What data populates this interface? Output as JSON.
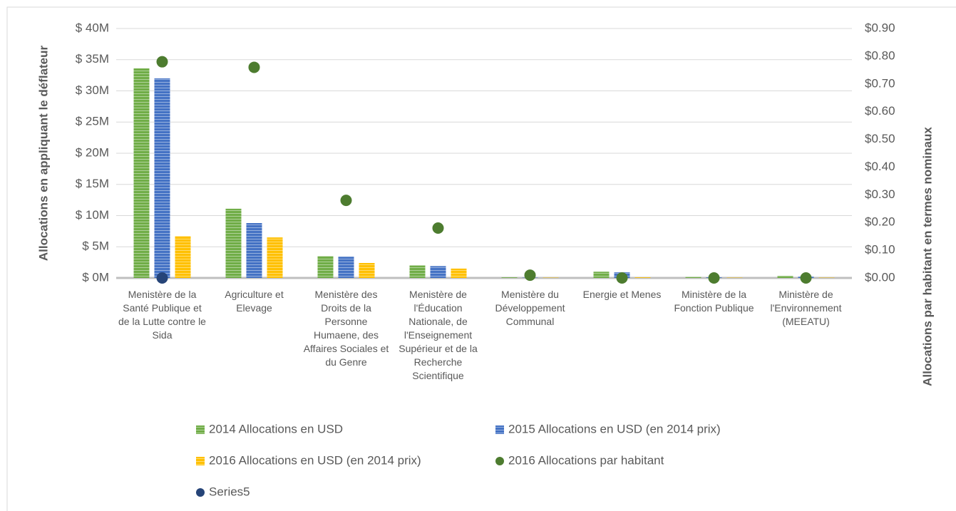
{
  "chart_data": {
    "type": "bar",
    "y_label": "Allocations en appliquant le déflateur",
    "y2_label": "Allocations par habitant en termes nominaux",
    "categories": [
      "Menistère de la Santé Publique et de la Lutte contre le Sida",
      "Agriculture et Elevage",
      "Menistère des Droits de la Personne Humaene, des Affaires Sociales et du Genre",
      "Menistère de l'Éducation Nationale, de l'Enseignement Supérieur et de la Recherche Scientifique",
      "Menistère du Développement Communal",
      "Energie et Menes",
      "Ministère de la Fonction Publique",
      "Ministère de l'Environnement (MEEATU)"
    ],
    "series": [
      {
        "name": "2014 Allocations en USD",
        "type": "bar",
        "color": "#70ad47",
        "values": [
          33600000,
          11100000,
          3500000,
          2000000,
          100000,
          1000000,
          150000,
          350000
        ]
      },
      {
        "name": "2015 Allocations en USD (en 2014 prix)",
        "type": "bar",
        "color": "#4472c4",
        "values": [
          32000000,
          8800000,
          3400000,
          1900000,
          50000,
          900000,
          100000,
          200000
        ]
      },
      {
        "name": "2016 Allocations en USD (en 2014 prix)",
        "type": "bar",
        "color": "#ffc000",
        "values": [
          6700000,
          6500000,
          2400000,
          1500000,
          50000,
          100000,
          50000,
          50000
        ]
      },
      {
        "name": "2016 Allocations par habitant",
        "type": "scatter",
        "axis": "y2",
        "color": "#4d7c2f",
        "values": [
          0.78,
          0.76,
          0.28,
          0.18,
          0.01,
          0,
          0,
          0
        ]
      },
      {
        "name": "Series5",
        "type": "scatter",
        "axis": "y2",
        "color": "#264478",
        "values": [
          0,
          null,
          null,
          null,
          null,
          null,
          null,
          null
        ]
      }
    ],
    "ylim": [
      0,
      40000000
    ],
    "yticks": [
      {
        "value": 0,
        "label": "$ 0M"
      },
      {
        "value": 5000000,
        "label": "$ 5M"
      },
      {
        "value": 10000000,
        "label": "$ 10M"
      },
      {
        "value": 15000000,
        "label": "$ 15M"
      },
      {
        "value": 20000000,
        "label": "$ 20M"
      },
      {
        "value": 25000000,
        "label": "$ 25M"
      },
      {
        "value": 30000000,
        "label": "$ 30M"
      },
      {
        "value": 35000000,
        "label": "$ 35M"
      },
      {
        "value": 40000000,
        "label": "$ 40M"
      }
    ],
    "y2lim": [
      0,
      0.9
    ],
    "y2ticks": [
      {
        "value": 0,
        "label": "$0.00"
      },
      {
        "value": 0.1,
        "label": "$0.10"
      },
      {
        "value": 0.2,
        "label": "$0.20"
      },
      {
        "value": 0.3,
        "label": "$0.30"
      },
      {
        "value": 0.4,
        "label": "$0.40"
      },
      {
        "value": 0.5,
        "label": "$0.50"
      },
      {
        "value": 0.6,
        "label": "$0.60"
      },
      {
        "value": 0.7,
        "label": "$0.70"
      },
      {
        "value": 0.8,
        "label": "$0.80"
      },
      {
        "value": 0.9,
        "label": "$0.90"
      }
    ],
    "grid": true,
    "legend": "bottom"
  }
}
